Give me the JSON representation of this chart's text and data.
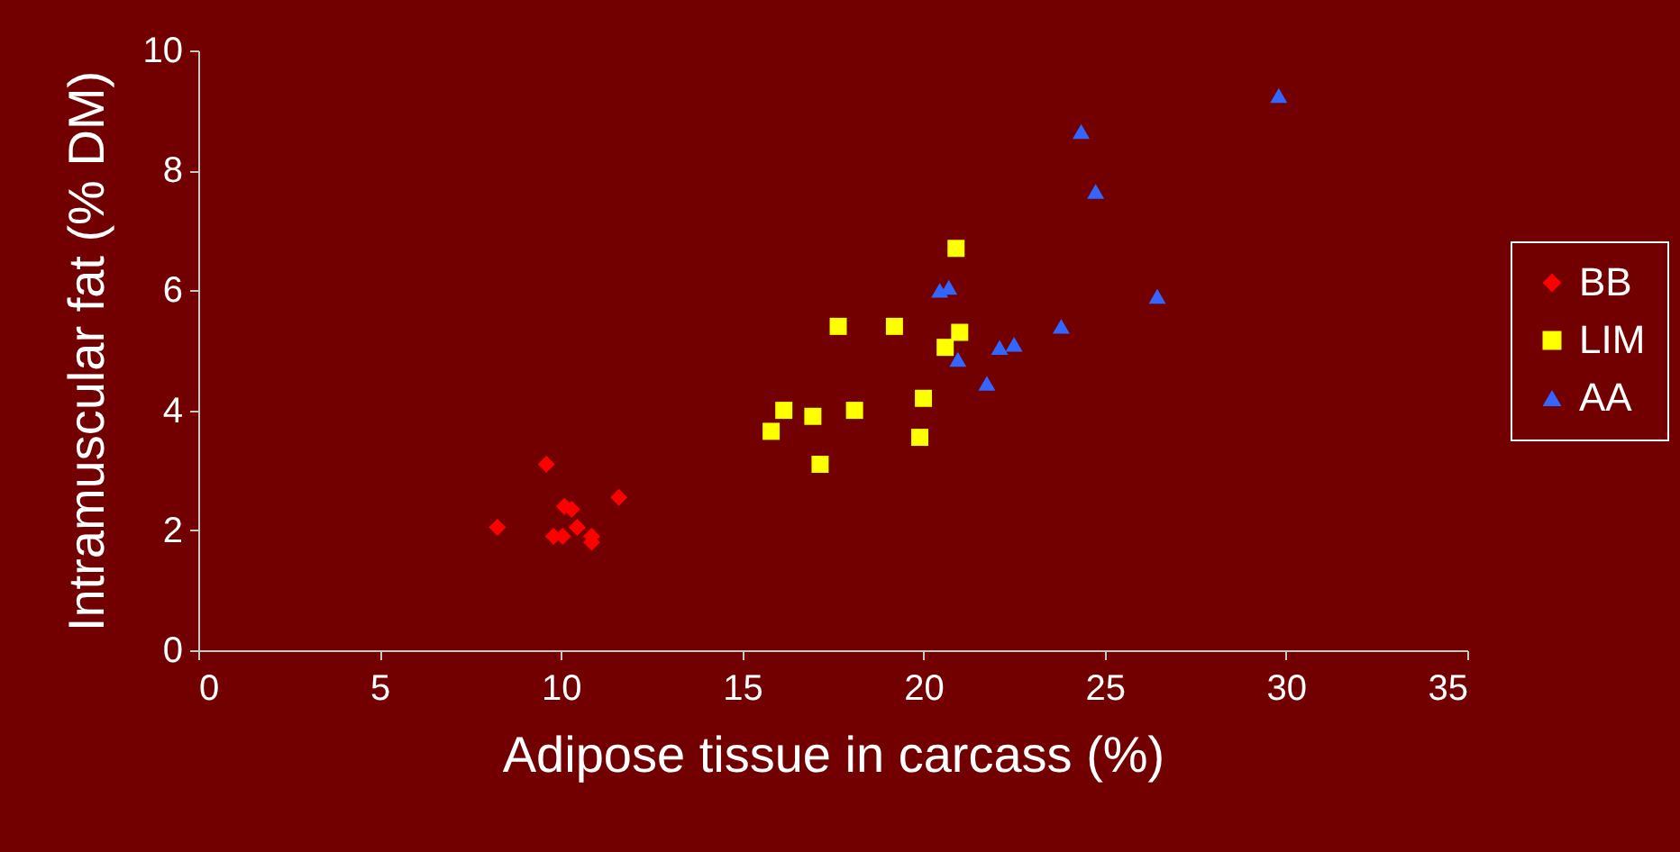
{
  "chart_data": {
    "type": "scatter",
    "xlabel": "Adipose tissue in carcass (%)",
    "ylabel": "Intramuscular fat (% DM)",
    "xlim": [
      0,
      35
    ],
    "xticks": [
      0,
      5,
      10,
      15,
      20,
      25,
      30,
      35
    ],
    "ylim": [
      0,
      10
    ],
    "yticks": [
      0,
      2,
      4,
      6,
      8,
      10
    ],
    "grid": false,
    "legend": "right",
    "series": [
      {
        "name": "BB",
        "color": "#ff0000",
        "marker": "diamond",
        "x": [
          8.25,
          9.6,
          10.1,
          10.3,
          11.6,
          10.45,
          9.8,
          10.05,
          10.85,
          10.85
        ],
        "values": [
          2.05,
          3.1,
          2.4,
          2.35,
          2.55,
          2.05,
          1.9,
          1.9,
          1.9,
          1.8
        ]
      },
      {
        "name": "LIM",
        "color": "#ffff00",
        "marker": "square",
        "x": [
          20.9,
          17.65,
          19.2,
          21.0,
          20.6,
          20.0,
          18.1,
          16.15,
          16.95,
          15.8,
          19.9,
          17.15
        ],
        "values": [
          6.7,
          5.4,
          5.4,
          5.3,
          5.05,
          4.2,
          4.0,
          4.0,
          3.9,
          3.65,
          3.55,
          3.1
        ]
      },
      {
        "name": "AA",
        "color": "#3366ff",
        "marker": "triangle",
        "x": [
          29.8,
          24.35,
          24.75,
          20.45,
          20.7,
          26.45,
          23.8,
          22.1,
          22.5,
          20.95,
          21.75
        ],
        "values": [
          9.25,
          8.65,
          7.65,
          6.0,
          6.05,
          5.9,
          5.4,
          5.05,
          5.1,
          4.85,
          4.45
        ]
      }
    ]
  }
}
